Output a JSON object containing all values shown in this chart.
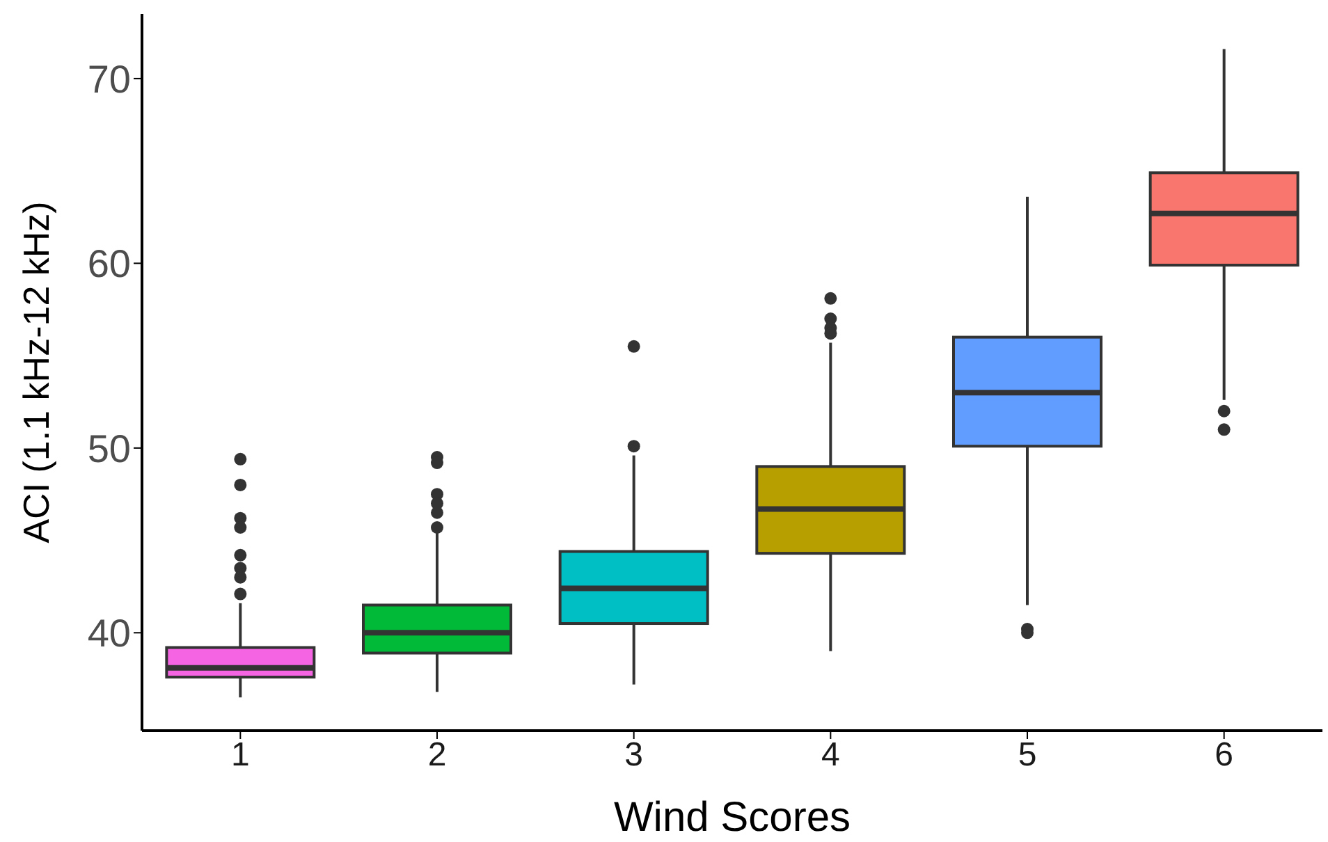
{
  "chart_data": {
    "type": "box",
    "xlabel": "Wind Scores",
    "ylabel": "ACI (1.1 kHz-12 kHz)",
    "categories": [
      "1",
      "2",
      "3",
      "4",
      "5",
      "6"
    ],
    "colors": [
      "#f564e3",
      "#00ba38",
      "#00bfc4",
      "#b79f00",
      "#619cff",
      "#f8766d"
    ],
    "boxes": [
      {
        "low": 36.5,
        "q1": 37.6,
        "median": 38.1,
        "q3": 39.2,
        "high": 41.6,
        "outliers": [
          49.4,
          48.0,
          46.2,
          45.7,
          44.2,
          43.5,
          43.0,
          42.1
        ]
      },
      {
        "low": 36.8,
        "q1": 38.9,
        "median": 40.0,
        "q3": 41.5,
        "high": 45.4,
        "outliers": [
          49.5,
          49.2,
          47.5,
          47.0,
          46.5,
          45.7
        ]
      },
      {
        "low": 37.2,
        "q1": 40.5,
        "median": 42.4,
        "q3": 44.4,
        "high": 49.6,
        "outliers": [
          50.1,
          55.5
        ]
      },
      {
        "low": 39.0,
        "q1": 44.3,
        "median": 46.7,
        "q3": 49.0,
        "high": 55.7,
        "outliers": [
          58.1,
          57.0,
          56.5,
          56.2
        ]
      },
      {
        "low": 41.5,
        "q1": 50.1,
        "median": 53.0,
        "q3": 56.0,
        "high": 63.6,
        "outliers": [
          40.2,
          40.0
        ]
      },
      {
        "low": 52.6,
        "q1": 59.9,
        "median": 62.7,
        "q3": 64.9,
        "high": 71.6,
        "outliers": [
          52.0,
          51.0
        ]
      }
    ],
    "ylim": [
      34.7,
      73.5
    ],
    "yticks": [
      40,
      50,
      60,
      70
    ]
  }
}
